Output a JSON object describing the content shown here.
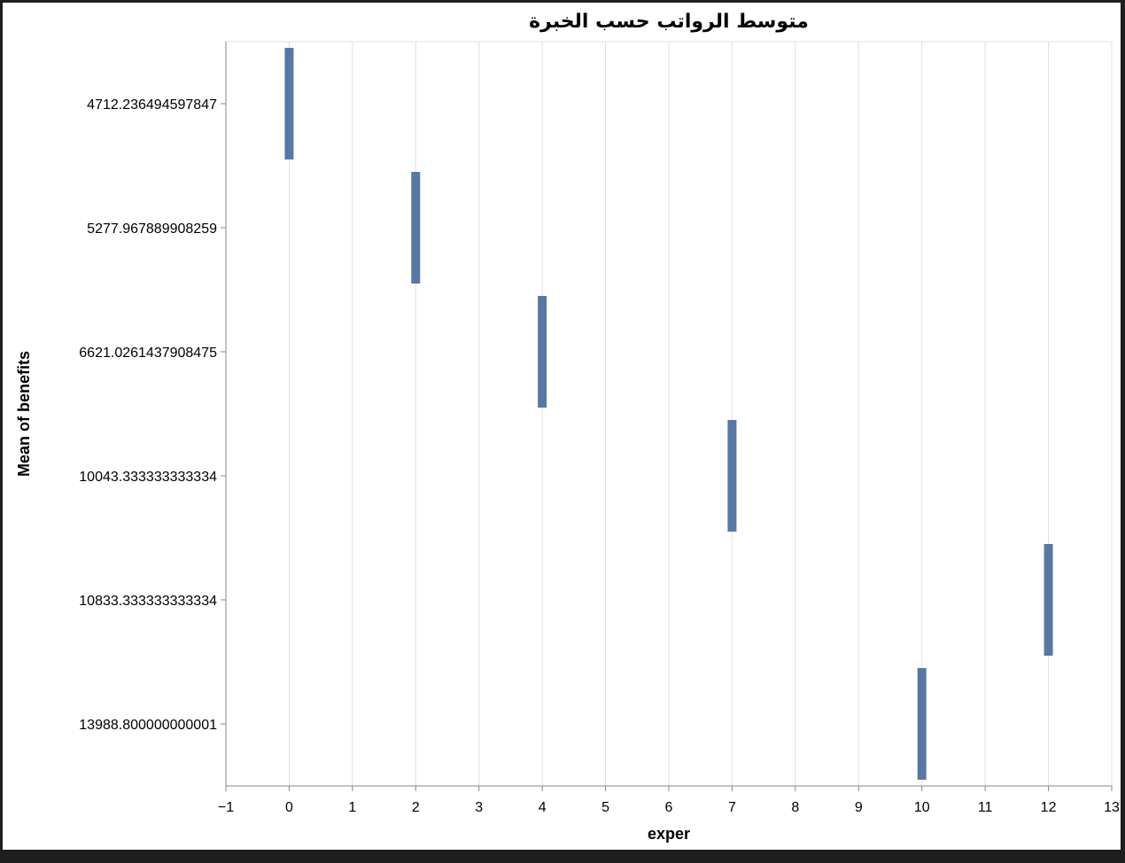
{
  "chart_data": {
    "type": "bar",
    "title": "متوسط الرواتب حسب الخبرة",
    "xlabel": "exper",
    "ylabel": "Mean of benefits",
    "xlim": [
      -1,
      13
    ],
    "x_ticks": [
      -1,
      0,
      1,
      2,
      3,
      4,
      5,
      6,
      7,
      8,
      9,
      10,
      11,
      12,
      13
    ],
    "x_tick_labels": [
      "−1",
      "0",
      "1",
      "2",
      "3",
      "4",
      "5",
      "6",
      "7",
      "8",
      "9",
      "10",
      "11",
      "12",
      "13"
    ],
    "y_scale": "band",
    "categories": [
      "4712.236494597847",
      "5277.967889908259",
      "6621.0261437908475",
      "10043.333333333334",
      "10833.333333333334",
      "13988.800000000001"
    ],
    "points": [
      {
        "x": 0,
        "y": "4712.236494597847"
      },
      {
        "x": 2,
        "y": "5277.967889908259"
      },
      {
        "x": 4,
        "y": "6621.0261437908475"
      },
      {
        "x": 7,
        "y": "10043.333333333334"
      },
      {
        "x": 12,
        "y": "10833.333333333334"
      },
      {
        "x": 10,
        "y": "13988.800000000001"
      }
    ],
    "grid": true,
    "colors": {
      "mark": "#5778a4",
      "grid": "#e0e0e0",
      "axis": "#888888"
    }
  }
}
